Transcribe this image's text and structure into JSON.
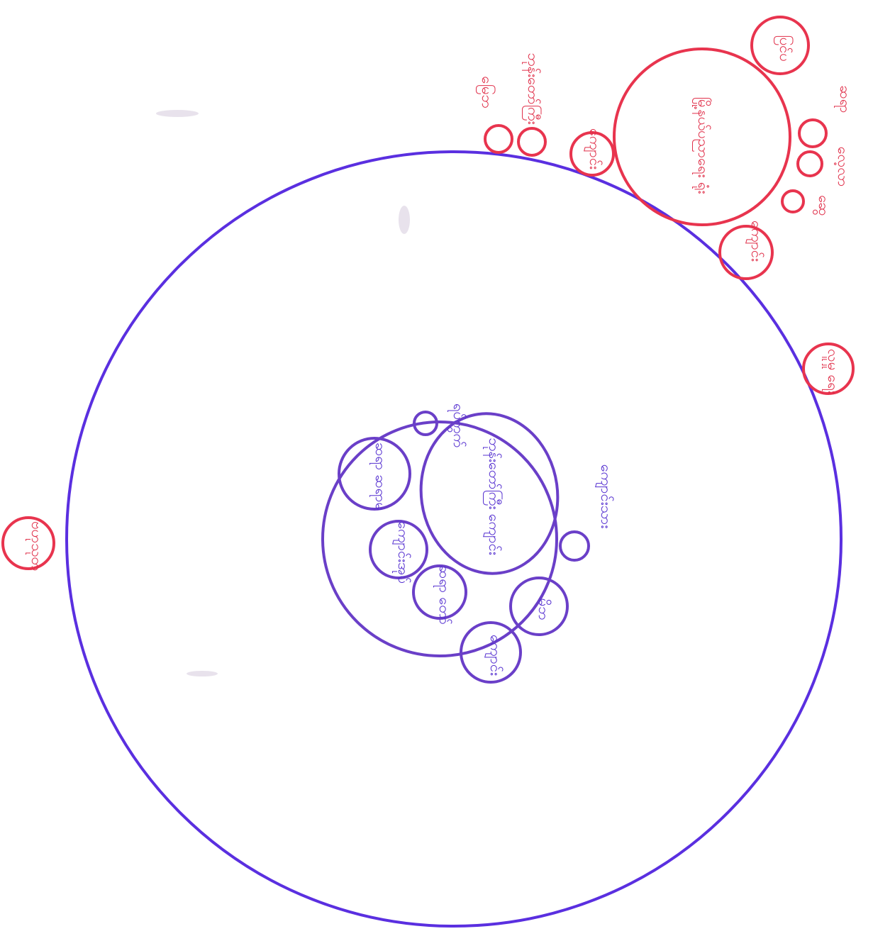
{
  "colors": {
    "outer": "#5a2fe0",
    "inner": "#6a3fc8",
    "external": "#e8344e"
  },
  "labels": {
    "left_external": "ဗဟုသုတ",
    "upper_a": "မြေဘ",
    "upper_b": "ဘုန်းတော်ကြီး",
    "upper_c": "ကျောင်း",
    "red_big": "မြို့နယ်ပညာရေး ရုံး",
    "red_top": "ပြင်ပ",
    "red_r1": "ဆရာ",
    "red_r2": "လေ့လာ",
    "red_r3": "ဆွေ",
    "red_r4": "ကျောင်း",
    "right_small": "လူမှု ရေး",
    "center_big": "ဘုန်းတော်ကြီး ကျောင်း",
    "c_top": "ရပ်ကွက်",
    "c_left": "ဆရာ ဆရာမ",
    "c_right": "ကျောင်းသား",
    "c_mid": "ကျောင်းအုပ်",
    "c_low1": "ဆရာ တော်",
    "c_low2": "မိဘ",
    "c_bottom": "ကျောင်း"
  }
}
